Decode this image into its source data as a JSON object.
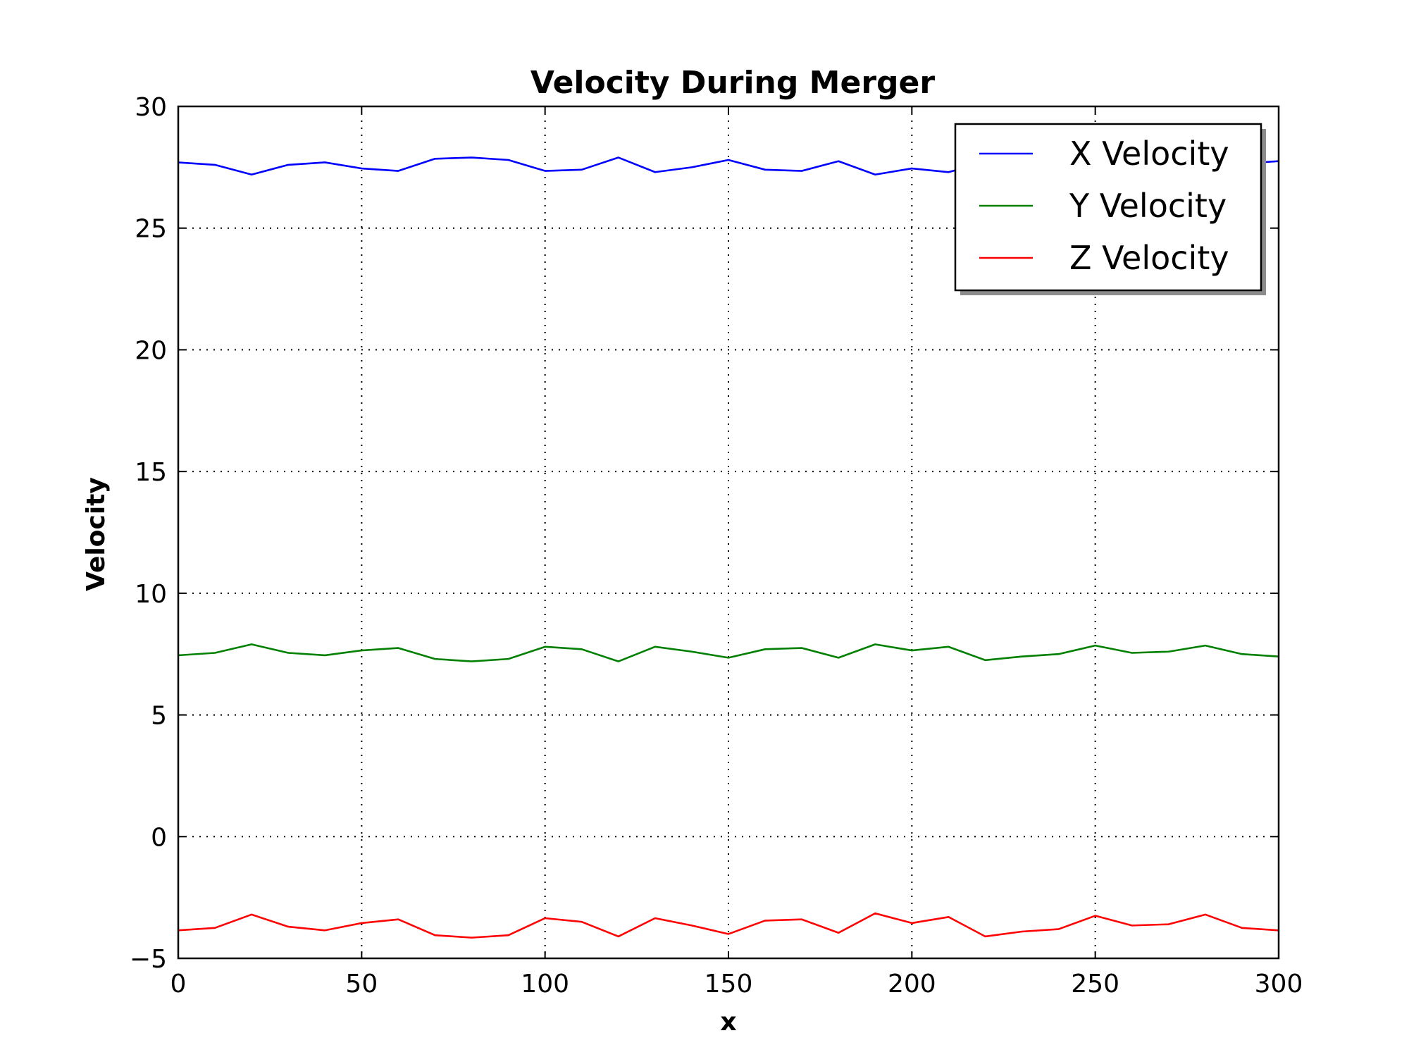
{
  "chart_data": {
    "type": "line",
    "title": "Velocity During Merger",
    "xlabel": "x",
    "ylabel": "Velocity",
    "xlim": [
      0,
      300
    ],
    "ylim": [
      -5,
      30
    ],
    "xticks": [
      0,
      50,
      100,
      150,
      200,
      250,
      300
    ],
    "yticks": [
      -5,
      0,
      5,
      10,
      15,
      20,
      25,
      30
    ],
    "ytick_labels": [
      "−5",
      "0",
      "5",
      "10",
      "15",
      "20",
      "25",
      "30"
    ],
    "grid": true,
    "legend_position": "top-right",
    "x": [
      0,
      10,
      20,
      30,
      40,
      50,
      60,
      70,
      80,
      90,
      100,
      110,
      120,
      130,
      140,
      150,
      160,
      170,
      180,
      190,
      200,
      210,
      220,
      230,
      240,
      250,
      260,
      270,
      280,
      290,
      300
    ],
    "series": [
      {
        "name": "X Velocity",
        "color": "#0000ff",
        "values": [
          27.7,
          27.6,
          27.2,
          27.6,
          27.7,
          27.45,
          27.35,
          27.85,
          27.9,
          27.8,
          27.35,
          27.4,
          27.9,
          27.3,
          27.5,
          27.8,
          27.4,
          27.35,
          27.75,
          27.2,
          27.45,
          27.3,
          27.7,
          27.5,
          27.45,
          27.6,
          27.7,
          27.4,
          27.5,
          27.65,
          27.75
        ]
      },
      {
        "name": "Y Velocity",
        "color": "#008000",
        "values": [
          7.45,
          7.55,
          7.9,
          7.55,
          7.45,
          7.65,
          7.75,
          7.3,
          7.2,
          7.3,
          7.8,
          7.7,
          7.2,
          7.8,
          7.6,
          7.35,
          7.7,
          7.75,
          7.35,
          7.9,
          7.65,
          7.8,
          7.25,
          7.4,
          7.5,
          7.85,
          7.55,
          7.6,
          7.85,
          7.5,
          7.4
        ]
      },
      {
        "name": "Z Velocity",
        "color": "#ff0000",
        "values": [
          -3.85,
          -3.75,
          -3.2,
          -3.7,
          -3.85,
          -3.55,
          -3.4,
          -4.05,
          -4.15,
          -4.05,
          -3.35,
          -3.5,
          -4.1,
          -3.35,
          -3.65,
          -4.0,
          -3.45,
          -3.4,
          -3.95,
          -3.15,
          -3.55,
          -3.3,
          -4.1,
          -3.9,
          -3.8,
          -3.25,
          -3.65,
          -3.6,
          -3.2,
          -3.75,
          -3.85
        ]
      }
    ]
  }
}
